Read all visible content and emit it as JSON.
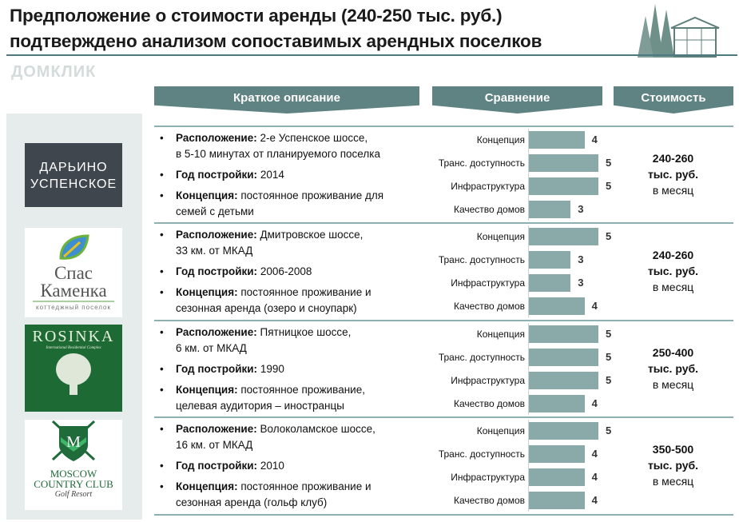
{
  "title": {
    "line1": "Предположение о стоимости аренды (240-250 тыс. руб.)",
    "line2": "подтверждено анализом сопоставимых арендных поселков"
  },
  "headers": {
    "description": "Краткое описание",
    "comparison": "Сравнение",
    "cost": "Стоимость"
  },
  "labels": {
    "location": "Расположение:",
    "year": "Год постройки:",
    "concept": "Концепция:"
  },
  "criteria": [
    "Концепция",
    "Транс. доступность",
    "Инфраструктура",
    "Качество домов"
  ],
  "bar_color": "#8aa9a9",
  "header_color": "#5f8382",
  "watermark": "ДОМКЛИК",
  "villages": [
    {
      "logo": {
        "line1": "ДАРЬИНО",
        "line2": "УСПЕНСКОЕ"
      },
      "location": "2-е Успенское шоссе,",
      "location2": "в 5-10 минутах от планируемого поселка",
      "year": "2014",
      "concept": "постоянное проживание для",
      "concept2": "семей с детьми",
      "scores": [
        4,
        5,
        5,
        3
      ],
      "price": "240-260",
      "price_unit": "тыс. руб.",
      "price_period": "в месяц"
    },
    {
      "logo": {
        "line1": "Спас",
        "line2": "Каменка",
        "line3": "коттеджный поселок"
      },
      "location": "Дмитровское шоссе,",
      "location2": "33 км. от МКАД",
      "year": "2006-2008",
      "concept": "постоянное проживание и",
      "concept2": "сезонная аренда (озеро и сноупарк)",
      "scores": [
        5,
        3,
        3,
        4
      ],
      "price": "240-260",
      "price_unit": "тыс. руб.",
      "price_period": "в месяц"
    },
    {
      "logo": {
        "line1": "ROSINKA",
        "line2": "International Residential Complex"
      },
      "location": "Пятницкое шоссе,",
      "location2": "6 км. от МКАД",
      "year": "1990",
      "concept": "постоянное проживание,",
      "concept2": "целевая аудитория – иностранцы",
      "scores": [
        5,
        5,
        5,
        4
      ],
      "price": "250-400",
      "price_unit": "тыс. руб.",
      "price_period": "в месяц"
    },
    {
      "logo": {
        "line1": "MOSCOW",
        "line2": "COUNTRY CLUB",
        "line3": "Golf Resort"
      },
      "location": "Волоколамское шоссе,",
      "location2": "16 км. от МКАД",
      "year": "2010",
      "concept": "постоянное проживание и",
      "concept2": "сезонная аренда (гольф клуб)",
      "scores": [
        5,
        4,
        4,
        4
      ],
      "price": "350-500",
      "price_unit": "тыс. руб.",
      "price_period": "в месяц"
    }
  ]
}
